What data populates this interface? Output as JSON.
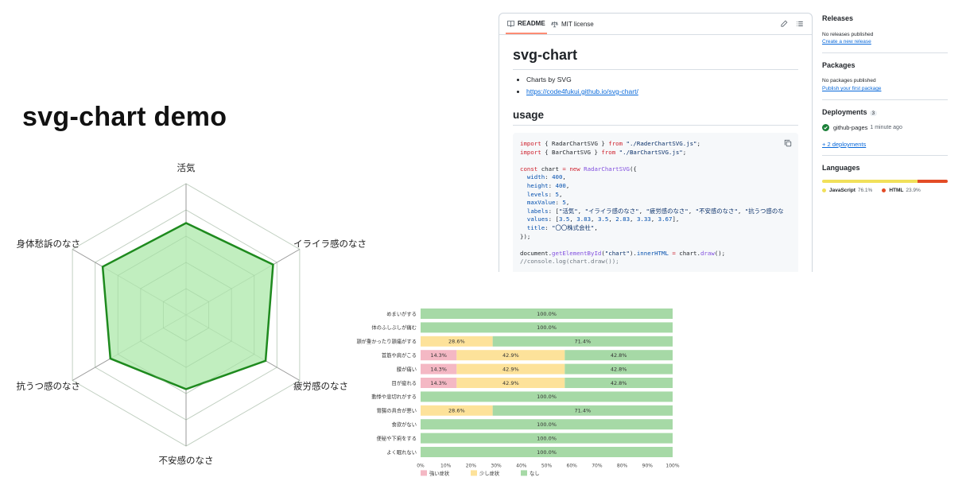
{
  "demo": {
    "title": "svg-chart demo"
  },
  "radar": {
    "labels": [
      "活気",
      "イライラ感のなさ",
      "疲労感のなさ",
      "不安感のなさ",
      "抗うつ感のなさ",
      "身体愁訴のなさ"
    ],
    "values": [
      3.5,
      3.83,
      3.5,
      2.83,
      3.33,
      3.67
    ],
    "levels": 5,
    "maxValue": 5,
    "fill_color": "#b6ebb4",
    "stroke_color": "#1e8a1e"
  },
  "chart_data": {
    "type": "bar",
    "stacked": true,
    "orientation": "horizontal",
    "categories": [
      "めまいがする",
      "体のふしぶしが痛む",
      "頭が重かったり頭痛がする",
      "首筋や肩がこる",
      "腰が痛い",
      "目が疲れる",
      "動悸や息切れがする",
      "胃腸の具合が悪い",
      "食欲がない",
      "便秘や下痢をする",
      "よく眠れない"
    ],
    "series": [
      {
        "name": "強い症状",
        "color": "#f4b8c4",
        "values": [
          0,
          0,
          0,
          14.3,
          14.3,
          14.3,
          0,
          0,
          0,
          0,
          0
        ],
        "labels": [
          "",
          "",
          "",
          "14.3%",
          "14.3%",
          "14.3%",
          "",
          "",
          "",
          "",
          ""
        ]
      },
      {
        "name": "少し症状",
        "color": "#fde29a",
        "values": [
          0,
          0,
          28.6,
          42.9,
          42.9,
          42.9,
          0,
          28.6,
          0,
          0,
          0
        ],
        "labels": [
          "",
          "",
          "28.6%",
          "42.9%",
          "42.9%",
          "42.9%",
          "",
          "28.6%",
          "",
          "",
          ""
        ]
      },
      {
        "name": "なし",
        "color": "#a6d9a6",
        "values": [
          100,
          100,
          71.4,
          42.8,
          42.8,
          42.8,
          100,
          71.4,
          100,
          100,
          100
        ],
        "labels": [
          "100.0%",
          "100.0%",
          "71.4%",
          "42.8%",
          "42.8%",
          "42.8%",
          "100.0%",
          "71.4%",
          "100.0%",
          "100.0%",
          "100.0%"
        ]
      }
    ],
    "xlim": [
      0,
      100
    ],
    "xticks": [
      "0%",
      "10%",
      "20%",
      "30%",
      "40%",
      "50%",
      "60%",
      "70%",
      "80%",
      "90%",
      "100%"
    ],
    "legend": "bottom-left"
  },
  "readme": {
    "tab_readme": "README",
    "tab_license": "MIT license",
    "h1": "svg-chart",
    "bullet_1": "Charts by SVG",
    "link_1": "https://code4fukui.github.io/svg-chart/",
    "h2": "usage"
  },
  "sidebar": {
    "releases_title": "Releases",
    "releases_none": "No releases published",
    "releases_create": "Create a new release",
    "packages_title": "Packages",
    "packages_none": "No packages published",
    "packages_publish": "Publish your first package",
    "deployments_title": "Deployments",
    "deployments_count": "3",
    "deployment_name": "github-pages",
    "deployment_time": "1 minute ago",
    "deployments_more": "+ 2 deployments",
    "languages_title": "Languages",
    "languages": [
      {
        "name": "JavaScript",
        "percent": "76.1%",
        "value": 76.1,
        "color": "#f1e05a"
      },
      {
        "name": "HTML",
        "percent": "23.9%",
        "value": 23.9,
        "color": "#e34c26"
      }
    ]
  }
}
